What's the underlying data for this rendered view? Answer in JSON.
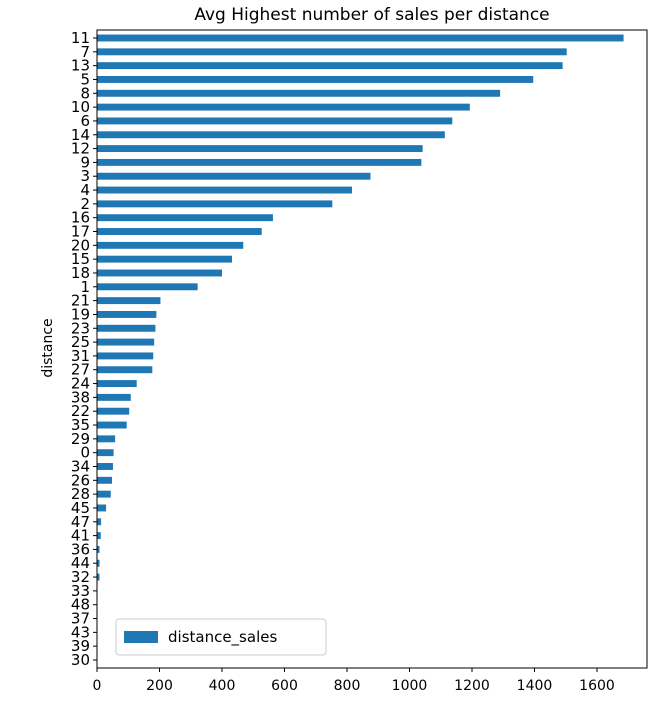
{
  "chart_data": {
    "type": "bar",
    "orientation": "horizontal",
    "title": "Avg Highest number of sales per distance",
    "xlabel": "",
    "ylabel": "distance",
    "xlim": [
      0,
      1760
    ],
    "xticks": [
      0,
      200,
      400,
      600,
      800,
      1000,
      1200,
      1400,
      1600
    ],
    "grid": false,
    "legend_position": "lower-left",
    "bar_color": "#1f77b4",
    "categories": [
      "11",
      "7",
      "13",
      "5",
      "8",
      "10",
      "6",
      "14",
      "12",
      "9",
      "3",
      "4",
      "2",
      "16",
      "17",
      "20",
      "15",
      "18",
      "1",
      "21",
      "19",
      "23",
      "25",
      "31",
      "27",
      "24",
      "38",
      "22",
      "35",
      "29",
      "0",
      "34",
      "26",
      "28",
      "45",
      "47",
      "41",
      "36",
      "44",
      "32",
      "33",
      "48",
      "37",
      "43",
      "39",
      "30"
    ],
    "series": [
      {
        "name": "distance_sales",
        "values": [
          1685,
          1503,
          1490,
          1396,
          1290,
          1193,
          1137,
          1113,
          1042,
          1038,
          875,
          816,
          753,
          563,
          527,
          468,
          432,
          400,
          322,
          203,
          190,
          187,
          183,
          180,
          177,
          127,
          108,
          103,
          95,
          58,
          53,
          51,
          48,
          44,
          29,
          13,
          12,
          8,
          8,
          8,
          0,
          0,
          0,
          0,
          0,
          0
        ]
      }
    ]
  }
}
